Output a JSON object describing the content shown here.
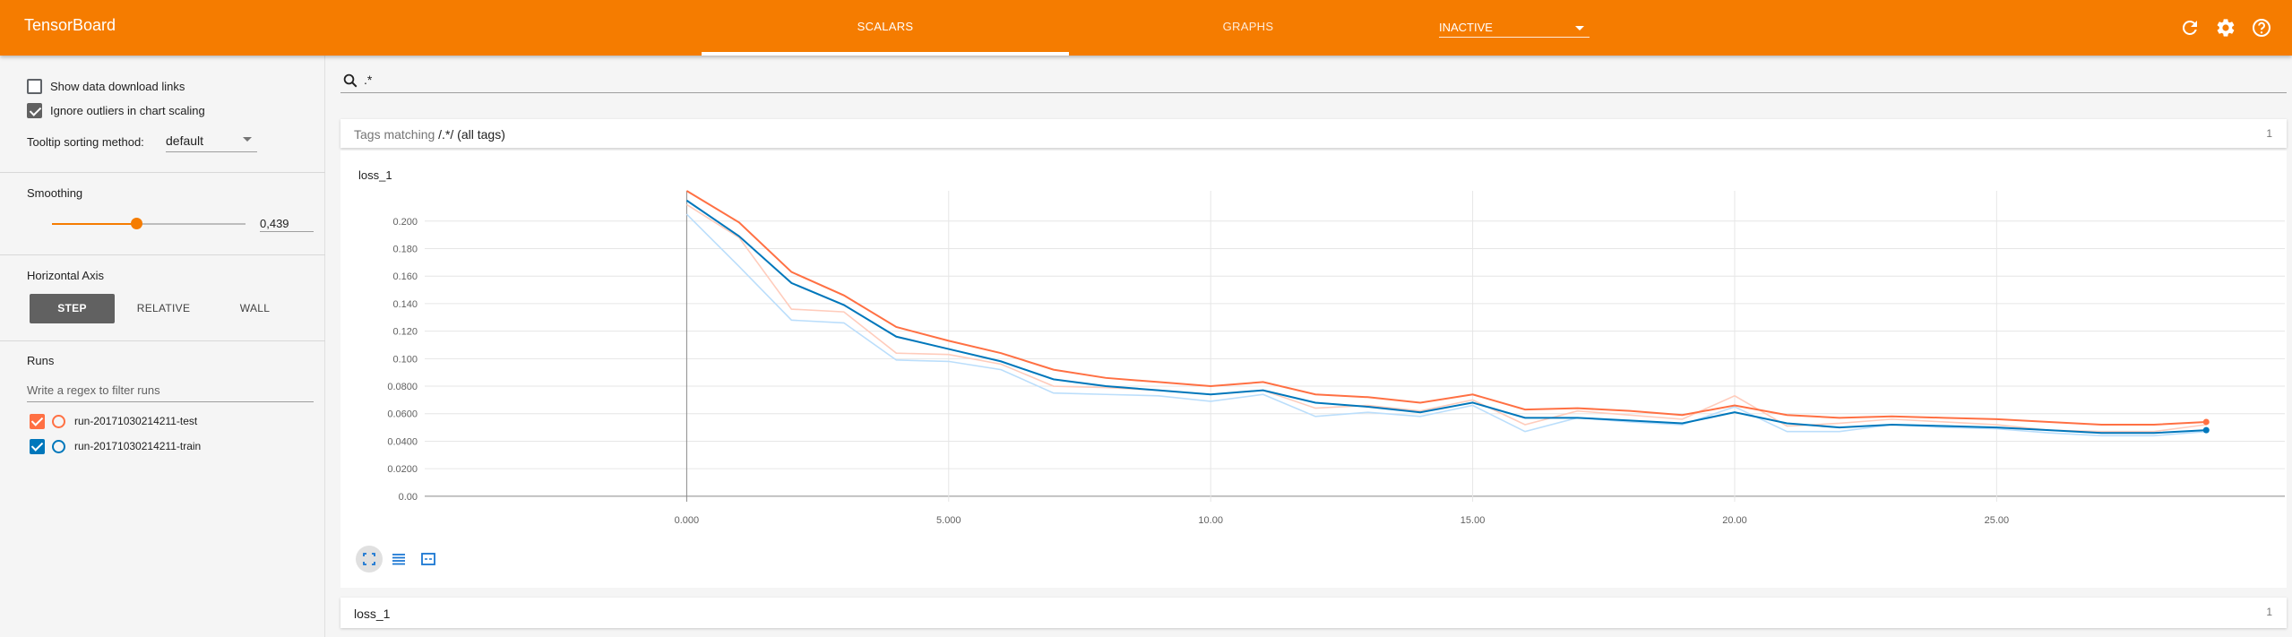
{
  "header": {
    "app_title": "TensorBoard",
    "tabs": [
      {
        "label": "SCALARS",
        "active": true
      },
      {
        "label": "GRAPHS",
        "active": false
      }
    ],
    "status_select": "INACTIVE",
    "icons": [
      "refresh-icon",
      "settings-icon",
      "help-icon"
    ],
    "color": "#f57c00"
  },
  "sidebar": {
    "show_download_links": {
      "label": "Show data download links",
      "checked": false
    },
    "ignore_outliers": {
      "label": "Ignore outliers in chart scaling",
      "checked": true
    },
    "tooltip_sorting": {
      "label": "Tooltip sorting method:",
      "value": "default"
    },
    "smoothing": {
      "heading": "Smoothing",
      "value": "0,439",
      "level": 0.439
    },
    "horizontal_axis": {
      "heading": "Horizontal Axis",
      "options": [
        "STEP",
        "RELATIVE",
        "WALL"
      ],
      "selected": "STEP"
    },
    "runs": {
      "heading": "Runs",
      "filter_placeholder": "Write a regex to filter runs",
      "items": [
        {
          "name": "run-20171030214211-test",
          "checked": true,
          "color": "#ff7043"
        },
        {
          "name": "run-20171030214211-train",
          "checked": true,
          "color": "#0077bb"
        }
      ]
    }
  },
  "main": {
    "search_value": ".*",
    "tag_group": {
      "prefix": "Tags matching ",
      "regex": "/.*/",
      "suffix": " (all tags)",
      "count": "1"
    },
    "footer_card": {
      "title": "loss_1",
      "count": "1"
    }
  },
  "chart_data": {
    "type": "line",
    "title": "loss_1",
    "xlabel": "",
    "ylabel": "",
    "x_ticks": [
      "0.000",
      "5.000",
      "10.00",
      "15.00",
      "20.00",
      "25.00"
    ],
    "y_ticks": [
      "0.00",
      "0.0200",
      "0.0400",
      "0.0600",
      "0.0800",
      "0.100",
      "0.120",
      "0.140",
      "0.160",
      "0.180",
      "0.200"
    ],
    "xlim": [
      -5,
      30.5
    ],
    "ylim": [
      -0.004,
      0.222
    ],
    "grid": true,
    "series": [
      {
        "name": "run-20171030214211-test",
        "color": "#ff7043",
        "raw_color": "#ffccbc",
        "x": [
          0,
          1,
          2,
          3,
          4,
          5,
          6,
          7,
          8,
          9,
          10,
          11,
          12,
          13,
          14,
          15,
          16,
          17,
          18,
          19,
          20,
          21,
          22,
          23,
          24,
          25,
          26,
          27,
          28,
          29
        ],
        "smoothed": [
          0.222,
          0.199,
          0.163,
          0.146,
          0.123,
          0.113,
          0.104,
          0.092,
          0.086,
          0.083,
          0.08,
          0.083,
          0.074,
          0.072,
          0.068,
          0.074,
          0.063,
          0.064,
          0.062,
          0.059,
          0.066,
          0.059,
          0.057,
          0.058,
          0.057,
          0.056,
          0.054,
          0.052,
          0.052,
          0.054
        ],
        "raw": [
          0.212,
          0.188,
          0.136,
          0.134,
          0.104,
          0.103,
          0.096,
          0.08,
          0.079,
          0.077,
          0.074,
          0.077,
          0.064,
          0.066,
          0.062,
          0.07,
          0.052,
          0.062,
          0.059,
          0.056,
          0.073,
          0.051,
          0.053,
          0.056,
          0.054,
          0.052,
          0.048,
          0.047,
          0.047,
          0.052
        ]
      },
      {
        "name": "run-20171030214211-train",
        "color": "#0077bb",
        "raw_color": "#bbdefb",
        "x": [
          0,
          1,
          2,
          3,
          4,
          5,
          6,
          7,
          8,
          9,
          10,
          11,
          12,
          13,
          14,
          15,
          16,
          17,
          18,
          19,
          20,
          21,
          22,
          23,
          24,
          25,
          26,
          27,
          28,
          29
        ],
        "smoothed": [
          0.215,
          0.189,
          0.155,
          0.139,
          0.116,
          0.107,
          0.098,
          0.085,
          0.08,
          0.077,
          0.074,
          0.077,
          0.068,
          0.065,
          0.061,
          0.068,
          0.057,
          0.057,
          0.055,
          0.053,
          0.061,
          0.053,
          0.05,
          0.052,
          0.051,
          0.05,
          0.048,
          0.046,
          0.046,
          0.048
        ],
        "raw": [
          0.205,
          0.167,
          0.128,
          0.126,
          0.099,
          0.098,
          0.092,
          0.075,
          0.074,
          0.073,
          0.069,
          0.074,
          0.058,
          0.061,
          0.058,
          0.066,
          0.047,
          0.057,
          0.054,
          0.052,
          0.065,
          0.047,
          0.047,
          0.052,
          0.05,
          0.049,
          0.046,
          0.044,
          0.044,
          0.047
        ]
      }
    ]
  }
}
